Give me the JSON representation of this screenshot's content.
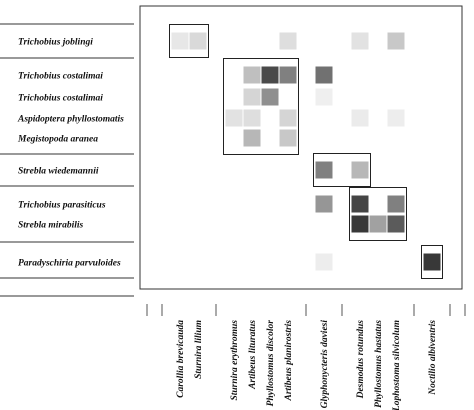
{
  "row_labels": [
    "Trichobius joblingi",
    "Trichobius costalimai",
    "Trichobius costalimai",
    "Aspidoptera phyllostomatis",
    "Megistopoda aranea",
    "Strebla wiedemannii",
    "Trichobius parasiticus",
    "Strebla mirabilis",
    "Paradyschiria parvuloides"
  ],
  "column_labels": [
    "Carollia brevicauda",
    "Sturnira lilium",
    "Sturnira erythromus",
    "Artibeus lituratus",
    "Phyllostomus discolor",
    "Artibeus planirostris",
    "Glyphonycteris daviesi",
    "Desmodus rotundus",
    "Phyllostomus hastatus",
    "Lophostoma silvicolum",
    "Noctilio albiventris"
  ],
  "cells": [
    {
      "row": 0,
      "col": 0,
      "value": 0.08
    },
    {
      "row": 0,
      "col": 1,
      "value": 0.14
    },
    {
      "row": 0,
      "col": 5,
      "value": 0.12
    },
    {
      "row": 0,
      "col": 7,
      "value": 0.1
    },
    {
      "row": 0,
      "col": 9,
      "value": 0.22
    },
    {
      "row": 1,
      "col": 3,
      "value": 0.26
    },
    {
      "row": 1,
      "col": 4,
      "value": 0.8
    },
    {
      "row": 1,
      "col": 5,
      "value": 0.55
    },
    {
      "row": 1,
      "col": 6,
      "value": 0.62
    },
    {
      "row": 2,
      "col": 3,
      "value": 0.16
    },
    {
      "row": 2,
      "col": 4,
      "value": 0.48
    },
    {
      "row": 2,
      "col": 6,
      "value": 0.04
    },
    {
      "row": 3,
      "col": 2,
      "value": 0.1
    },
    {
      "row": 3,
      "col": 3,
      "value": 0.12
    },
    {
      "row": 3,
      "col": 5,
      "value": 0.16
    },
    {
      "row": 3,
      "col": 7,
      "value": 0.06
    },
    {
      "row": 3,
      "col": 9,
      "value": 0.05
    },
    {
      "row": 4,
      "col": 3,
      "value": 0.3
    },
    {
      "row": 4,
      "col": 5,
      "value": 0.22
    },
    {
      "row": 5,
      "col": 6,
      "value": 0.55
    },
    {
      "row": 5,
      "col": 7,
      "value": 0.3
    },
    {
      "row": 6,
      "col": 6,
      "value": 0.45
    },
    {
      "row": 6,
      "col": 7,
      "value": 0.82
    },
    {
      "row": 6,
      "col": 9,
      "value": 0.55
    },
    {
      "row": 7,
      "col": 7,
      "value": 0.88
    },
    {
      "row": 7,
      "col": 8,
      "value": 0.4
    },
    {
      "row": 7,
      "col": 9,
      "value": 0.72
    },
    {
      "row": 8,
      "col": 6,
      "value": 0.05
    },
    {
      "row": 8,
      "col": 10,
      "value": 0.88
    }
  ]
}
